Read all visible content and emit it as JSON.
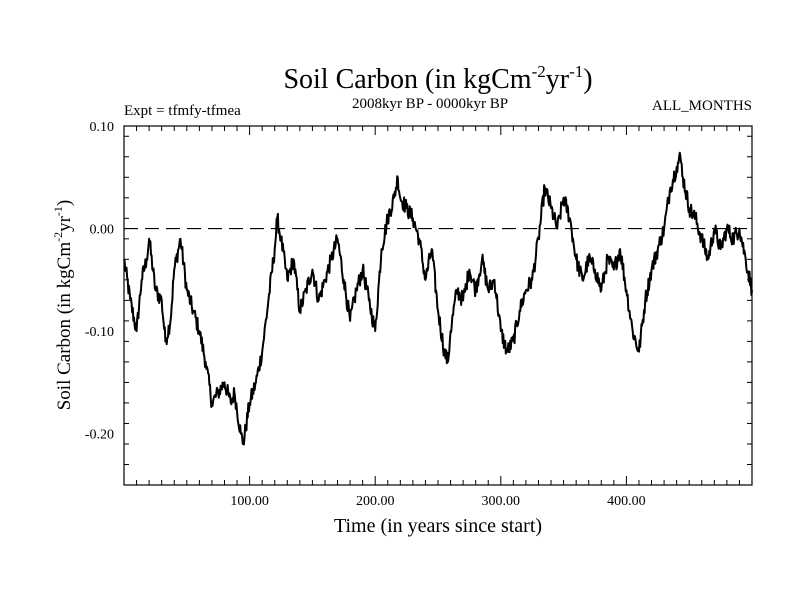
{
  "chart_data": {
    "type": "line",
    "title": {
      "main": "Soil Carbon (in kgCm",
      "sup1": "-2",
      "mid": "yr",
      "sup2": "-1",
      "end": ")"
    },
    "subtitle_left": "Expt = tfmfy-tfmea",
    "subtitle_center": "2008kyr BP - 0000kyr BP",
    "subtitle_right": "ALL_MONTHS",
    "xlabel": "Time (in years since start)",
    "ylabel": {
      "main": "Soil Carbon (in kgCm",
      "sup1": "-2",
      "mid": "yr",
      "sup2": "-1",
      "end": ")"
    },
    "xlim": [
      0,
      500
    ],
    "ylim": [
      -0.25,
      0.1
    ],
    "x_tick_labels": [
      "100.00",
      "200.00",
      "300.00",
      "400.00"
    ],
    "x_tick_values": [
      100,
      200,
      300,
      400
    ],
    "y_tick_labels": [
      "0.10",
      "0.00",
      "-0.10",
      "-0.20"
    ],
    "y_tick_values": [
      0.1,
      0.0,
      -0.1,
      -0.2
    ],
    "reference_line": {
      "y": 0.0,
      "style": "dashed"
    },
    "series": [
      {
        "name": "Soil Carbon",
        "x": [
          0,
          5,
          10,
          14,
          18,
          20,
          25,
          30,
          33,
          37,
          40,
          45,
          50,
          55,
          60,
          65,
          70,
          75,
          80,
          85,
          88,
          93,
          95,
          100,
          105,
          110,
          115,
          120,
          122,
          125,
          130,
          135,
          140,
          145,
          150,
          155,
          160,
          165,
          170,
          175,
          180,
          185,
          190,
          195,
          200,
          205,
          210,
          215,
          218,
          220,
          225,
          230,
          235,
          240,
          245,
          250,
          255,
          258,
          260,
          265,
          270,
          275,
          280,
          285,
          290,
          295,
          300,
          305,
          310,
          315,
          320,
          325,
          330,
          335,
          340,
          345,
          350,
          355,
          360,
          365,
          370,
          375,
          380,
          385,
          390,
          395,
          400,
          405,
          410,
          415,
          420,
          425,
          430,
          435,
          440,
          443,
          445,
          450,
          455,
          460,
          465,
          470,
          475,
          480,
          485,
          490,
          495,
          500
        ],
        "y": [
          -0.03,
          -0.07,
          -0.1,
          -0.05,
          -0.03,
          -0.01,
          -0.06,
          -0.07,
          -0.11,
          -0.09,
          -0.04,
          -0.01,
          -0.06,
          -0.08,
          -0.1,
          -0.13,
          -0.17,
          -0.16,
          -0.15,
          -0.17,
          -0.16,
          -0.2,
          -0.21,
          -0.17,
          -0.15,
          -0.12,
          -0.07,
          -0.02,
          0.01,
          -0.01,
          -0.05,
          -0.03,
          -0.08,
          -0.06,
          -0.04,
          -0.07,
          -0.05,
          -0.03,
          -0.01,
          -0.05,
          -0.09,
          -0.06,
          -0.04,
          -0.07,
          -0.1,
          -0.02,
          0.01,
          0.03,
          0.05,
          0.03,
          0.02,
          0.01,
          -0.01,
          -0.05,
          -0.02,
          -0.08,
          -0.12,
          -0.13,
          -0.1,
          -0.06,
          -0.07,
          -0.04,
          -0.06,
          -0.03,
          -0.06,
          -0.05,
          -0.1,
          -0.12,
          -0.11,
          -0.08,
          -0.06,
          -0.05,
          -0.01,
          0.04,
          0.02,
          0.0,
          0.03,
          0.01,
          -0.03,
          -0.05,
          -0.03,
          -0.04,
          -0.06,
          -0.03,
          -0.04,
          -0.02,
          -0.06,
          -0.1,
          -0.12,
          -0.07,
          -0.04,
          -0.02,
          0.0,
          0.04,
          0.06,
          0.07,
          0.05,
          0.02,
          0.01,
          -0.01,
          -0.03,
          0.0,
          -0.02,
          0.0,
          -0.01,
          0.0,
          -0.03,
          -0.06
        ]
      }
    ]
  }
}
